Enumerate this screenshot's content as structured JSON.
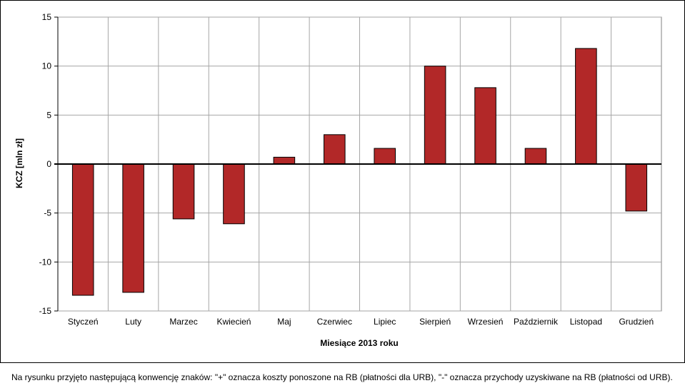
{
  "chart_data": {
    "type": "bar",
    "categories": [
      "Styczeń",
      "Luty",
      "Marzec",
      "Kwiecień",
      "Maj",
      "Czerwiec",
      "Lipiec",
      "Sierpień",
      "Wrzesień",
      "Październik",
      "Listopad",
      "Grudzień"
    ],
    "values": [
      -13.4,
      -13.1,
      -5.6,
      -6.1,
      0.7,
      3.0,
      1.6,
      10.0,
      7.8,
      1.6,
      11.8,
      -4.8
    ],
    "xlabel": "Miesiące 2013  roku",
    "ylabel": "KCZ [mln zł]",
    "ylim": [
      -15,
      15
    ],
    "yticks": [
      15,
      10,
      5,
      0,
      -5,
      -10,
      -15
    ],
    "grid": true,
    "colors": {
      "bar": "#b22828",
      "bar_edge": "#000000",
      "grid": "#a6a6a6"
    }
  },
  "footnote": "Na rysunku przyjęto następującą konwencję znaków: \"+\" oznacza koszty ponoszone na RB (płatności dla URB), \"-\" oznacza przychody uzyskiwane na RB (płatności od URB)."
}
